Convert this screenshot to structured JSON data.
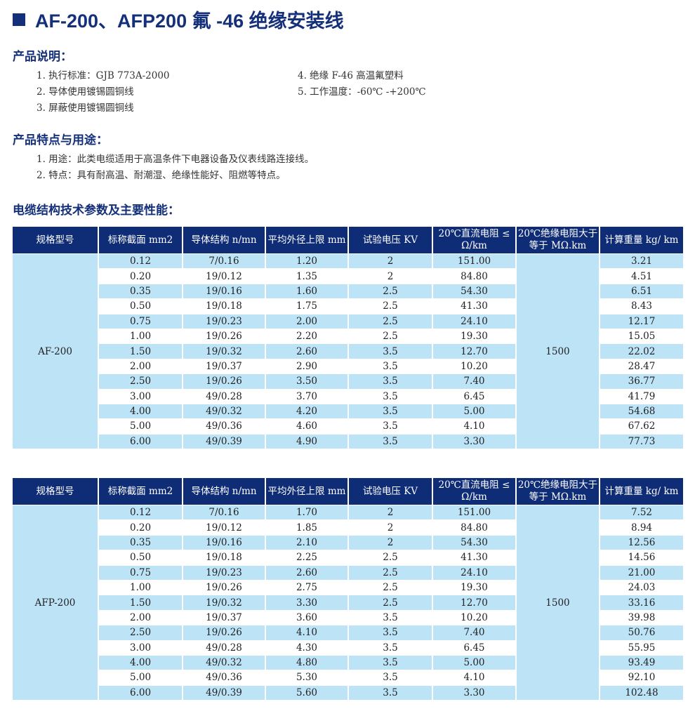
{
  "title": "AF-200、AFP200  氟 -46 绝缘安装线",
  "colors": {
    "accent": "#15307a",
    "header_bg": "#0f2c76",
    "row_highlight": "#bde3f7"
  },
  "description": {
    "heading": "产品说明：",
    "items": [
      "1. 执行标准：GJB  773A-2000",
      "2. 导体使用镀锡圆铜线",
      "3. 屏蔽使用镀锡圆铜线",
      "4. 绝缘 F-46 高温氟塑料",
      "5. 工作温度：-60℃ -+200℃"
    ]
  },
  "features": {
    "heading": "产品特点与用途：",
    "items": [
      "1. 用途：此类电缆适用于高温条件下电器设备及仪表线路连接线。",
      "2. 特点：具有耐高温、耐潮湿、绝缘性能好、阻燃等特点。"
    ]
  },
  "params_heading": "电缆结构技术参数及主要性能：",
  "columns": [
    "规格型号",
    "标称截面 mm2",
    "导体结构 n/mn",
    "平均外径上限 mm",
    "试验电压 KV",
    "20℃直流电阻 ≤ Ω/km",
    "20℃绝缘电阻大于等于 MΩ.km",
    "计算重量 kg/ km"
  ],
  "tables": [
    {
      "model": "AF-200",
      "insulation_resistance": "1500",
      "rows": [
        [
          "0.12",
          "7/0.16",
          "1.20",
          "2",
          "151.00",
          "3.21"
        ],
        [
          "0.20",
          "19/0.12",
          "1.35",
          "2",
          "84.80",
          "4.51"
        ],
        [
          "0.35",
          "19/0.16",
          "1.60",
          "2.5",
          "54.30",
          "6.51"
        ],
        [
          "0.50",
          "19/0.18",
          "1.75",
          "2.5",
          "41.30",
          "8.43"
        ],
        [
          "0.75",
          "19/0.23",
          "2.00",
          "2.5",
          "24.10",
          "12.17"
        ],
        [
          "1.00",
          "19/0.26",
          "2.20",
          "2.5",
          "19.30",
          "15.05"
        ],
        [
          "1.50",
          "19/0.32",
          "2.60",
          "3.5",
          "12.70",
          "22.02"
        ],
        [
          "2.00",
          "19/0.37",
          "2.90",
          "3.5",
          "10.20",
          "28.47"
        ],
        [
          "2.50",
          "19/0.26",
          "3.50",
          "3.5",
          "7.40",
          "36.77"
        ],
        [
          "3.00",
          "49/0.28",
          "3.70",
          "3.5",
          "6.45",
          "41.79"
        ],
        [
          "4.00",
          "49/0.32",
          "4.20",
          "3.5",
          "5.00",
          "54.68"
        ],
        [
          "5.00",
          "49/0.36",
          "4.60",
          "3.5",
          "4.10",
          "67.62"
        ],
        [
          "6.00",
          "49/0.39",
          "4.90",
          "3.5",
          "3.30",
          "77.73"
        ]
      ]
    },
    {
      "model": "AFP-200",
      "insulation_resistance": "1500",
      "rows": [
        [
          "0.12",
          "7/0.16",
          "1.70",
          "2",
          "151.00",
          "7.52"
        ],
        [
          "0.20",
          "19/0.12",
          "1.85",
          "2",
          "84.80",
          "8.94"
        ],
        [
          "0.35",
          "19/0.16",
          "2.10",
          "2",
          "54.30",
          "12.56"
        ],
        [
          "0.50",
          "19/0.18",
          "2.25",
          "2.5",
          "41.30",
          "14.56"
        ],
        [
          "0.75",
          "19/0.23",
          "2.60",
          "2.5",
          "24.10",
          "21.00"
        ],
        [
          "1.00",
          "19/0.26",
          "2.75",
          "2.5",
          "19.30",
          "24.03"
        ],
        [
          "1.50",
          "19/0.32",
          "3.30",
          "2.5",
          "12.70",
          "33.16"
        ],
        [
          "2.00",
          "19/0.37",
          "3.60",
          "3.5",
          "10.20",
          "39.98"
        ],
        [
          "2.50",
          "19/0.26",
          "4.10",
          "3.5",
          "7.40",
          "50.76"
        ],
        [
          "3.00",
          "49/0.28",
          "4.30",
          "3.5",
          "6.45",
          "55.95"
        ],
        [
          "4.00",
          "49/0.32",
          "4.80",
          "3.5",
          "5.00",
          "93.49"
        ],
        [
          "5.00",
          "49/0.36",
          "5.30",
          "3.5",
          "4.10",
          "92.10"
        ],
        [
          "6.00",
          "49/0.39",
          "5.60",
          "3.5",
          "3.30",
          "102.48"
        ]
      ]
    }
  ]
}
